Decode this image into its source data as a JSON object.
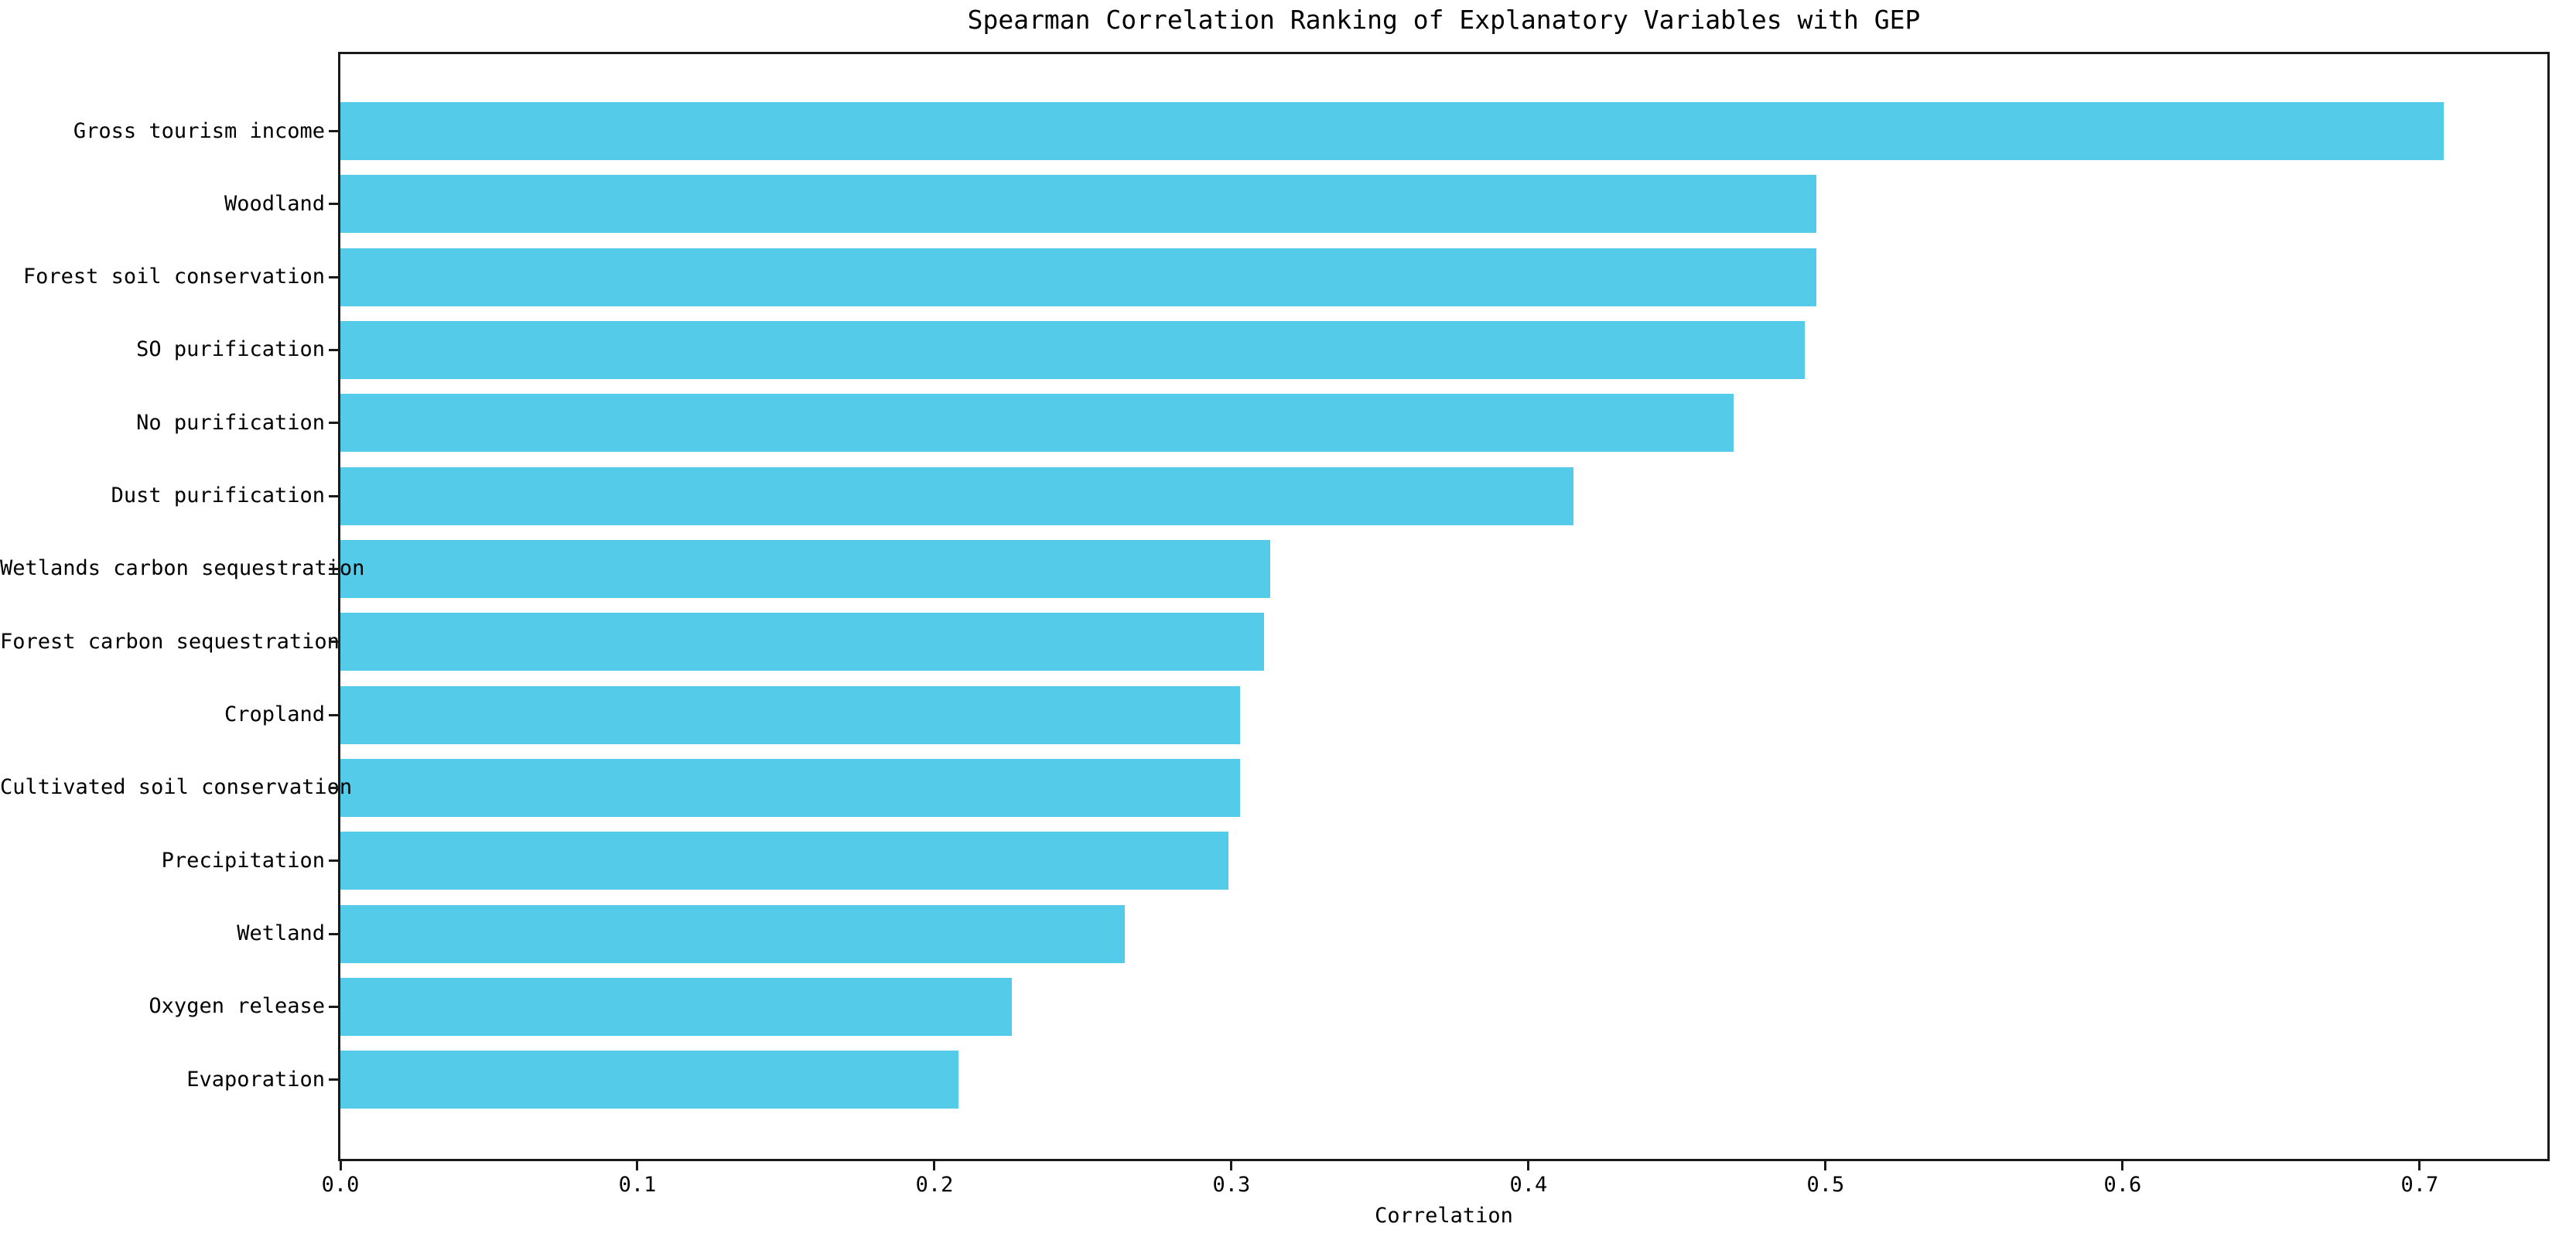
{
  "chart_data": {
    "type": "bar",
    "orientation": "horizontal",
    "title": "Spearman Correlation Ranking of Explanatory Variables with GEP",
    "xlabel": "Correlation",
    "ylabel": "",
    "categories": [
      "Gross tourism income",
      "Woodland",
      "Forest soil conservation",
      "SO purification",
      "No purification",
      "Dust purification",
      "Wetlands carbon sequestration",
      "Forest carbon sequestration",
      "Cropland",
      "Cultivated soil conservation",
      "Precipitation",
      "Wetland",
      "Oxygen release",
      "Evaporation"
    ],
    "values": [
      0.708,
      0.497,
      0.497,
      0.493,
      0.469,
      0.415,
      0.313,
      0.311,
      0.303,
      0.303,
      0.299,
      0.264,
      0.226,
      0.208
    ],
    "xlim": [
      0,
      0.743
    ],
    "x_ticks": [
      0.0,
      0.1,
      0.2,
      0.3,
      0.4,
      0.5,
      0.6,
      0.7
    ],
    "x_tick_labels": [
      "0.0",
      "0.1",
      "0.2",
      "0.3",
      "0.4",
      "0.5",
      "0.6",
      "0.7"
    ],
    "grid": false,
    "legend": "none",
    "bar_color": "#54cbe9",
    "spine_color": "#1a1a1a",
    "text_color": "#000000",
    "background_color": "#ffffff"
  }
}
